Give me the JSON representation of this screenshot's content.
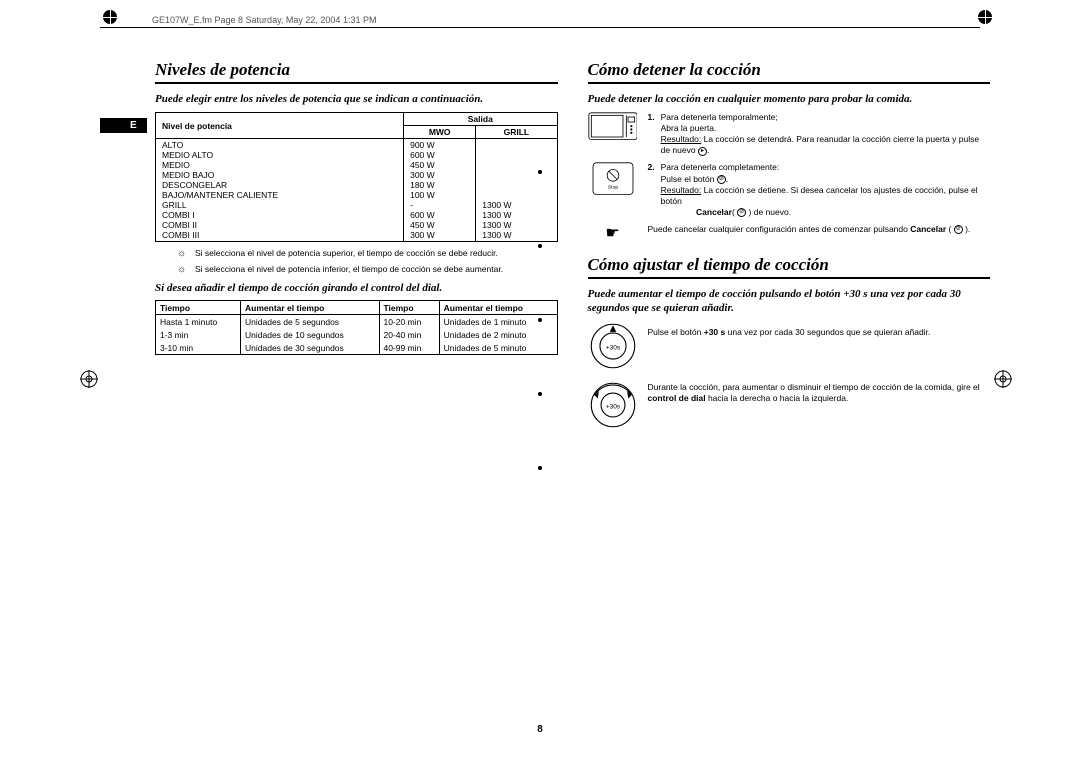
{
  "header_text": "GE107W_E.fm  Page 8  Saturday, May 22, 2004  1:31 PM",
  "page_number": "8",
  "lang_tab": "E",
  "left": {
    "title": "Niveles de potencia",
    "intro": "Puede elegir entre los niveles de potencia que se indican a continuación.",
    "power_table": {
      "h_level": "Nivel de potencia",
      "h_output": "Salida",
      "h_mwo": "MWO",
      "h_grill": "GRILL",
      "rows": [
        {
          "level": "ALTO",
          "mwo": "900 W",
          "grill": ""
        },
        {
          "level": "MEDIO ALTO",
          "mwo": "600 W",
          "grill": ""
        },
        {
          "level": "MEDIO",
          "mwo": "450 W",
          "grill": ""
        },
        {
          "level": "MEDIO BAJO",
          "mwo": "300 W",
          "grill": ""
        },
        {
          "level": "DESCONGELAR",
          "mwo": "180 W",
          "grill": ""
        },
        {
          "level": "BAJO/MANTENER CALIENTE",
          "mwo": "100 W",
          "grill": ""
        },
        {
          "level": "GRILL",
          "mwo": "-",
          "grill": "1300 W"
        },
        {
          "level": "COMBI I",
          "mwo": "600 W",
          "grill": "1300 W"
        },
        {
          "level": "COMBI II",
          "mwo": "450 W",
          "grill": "1300 W"
        },
        {
          "level": "COMBI III",
          "mwo": "300 W",
          "grill": "1300 W"
        }
      ]
    },
    "note1": "Si selecciona el nivel de potencia superior, el tiempo de cocción se debe reducir.",
    "note2": "Si selecciona el nivel de potencia inferior, el tiempo de cocción se debe aumentar.",
    "sub_intro": "Si desea añadir el tiempo de cocción girando el control del dial.",
    "time_table": {
      "h_time": "Tiempo",
      "h_inc": "Aumentar el tiempo",
      "rows": [
        {
          "t1": "Hasta 1 minuto",
          "i1": "Unidades de 5 segundos",
          "t2": "10-20 min",
          "i2": "Unidades de 1 minuto"
        },
        {
          "t1": "1-3 min",
          "i1": "Unidades de 10 segundos",
          "t2": "20-40 min",
          "i2": "Unidades de 2 minuto"
        },
        {
          "t1": "3-10 min",
          "i1": "Unidades de 30 segundos",
          "t2": "40-99 min",
          "i2": "Unidades de 5 minuto"
        }
      ]
    }
  },
  "right": {
    "section1": {
      "title": "Cómo detener la cocción",
      "intro": "Puede detener la cocción en cualquier momento para probar la comida.",
      "step1_line1": "Para detenerla temporalmente;",
      "step1_line2": "Abra la puerta.",
      "step1_result_label": "Resultado:",
      "step1_result": "La cocción se detendrá. Para reanudar la cocción cierre la puerta y pulse de nuevo",
      "step2_line1": "Para detenerla completamente:",
      "step2_line2": "Pulse el botón",
      "step2_result_label": "Resultado:",
      "step2_result": "La cocción se detiene. Si desea cancelar los ajustes de cocción, pulse el botón",
      "step2_cancel": "Cancelar",
      "step2_again": "de nuevo.",
      "pointer": "Puede cancelar cualquier configuración antes de comenzar pulsando",
      "pointer_cancel": "Cancelar"
    },
    "section2": {
      "title": "Cómo ajustar el tiempo de cocción",
      "intro": "Puede aumentar el tiempo de cocción pulsando el botón +30 s una vez por cada 30 segundos que se quieran añadir.",
      "line1a": "Pulse el botón ",
      "line1b": "+30 s",
      "line1c": " una vez por cada 30 segundos que se quieran añadir.",
      "line2a": "Durante la cocción, para aumentar o disminuir el tiempo de cocción de la comida, gire el ",
      "line2b": "control de dial",
      "line2c": " hacia la derecha o hacia la izquierda."
    }
  }
}
